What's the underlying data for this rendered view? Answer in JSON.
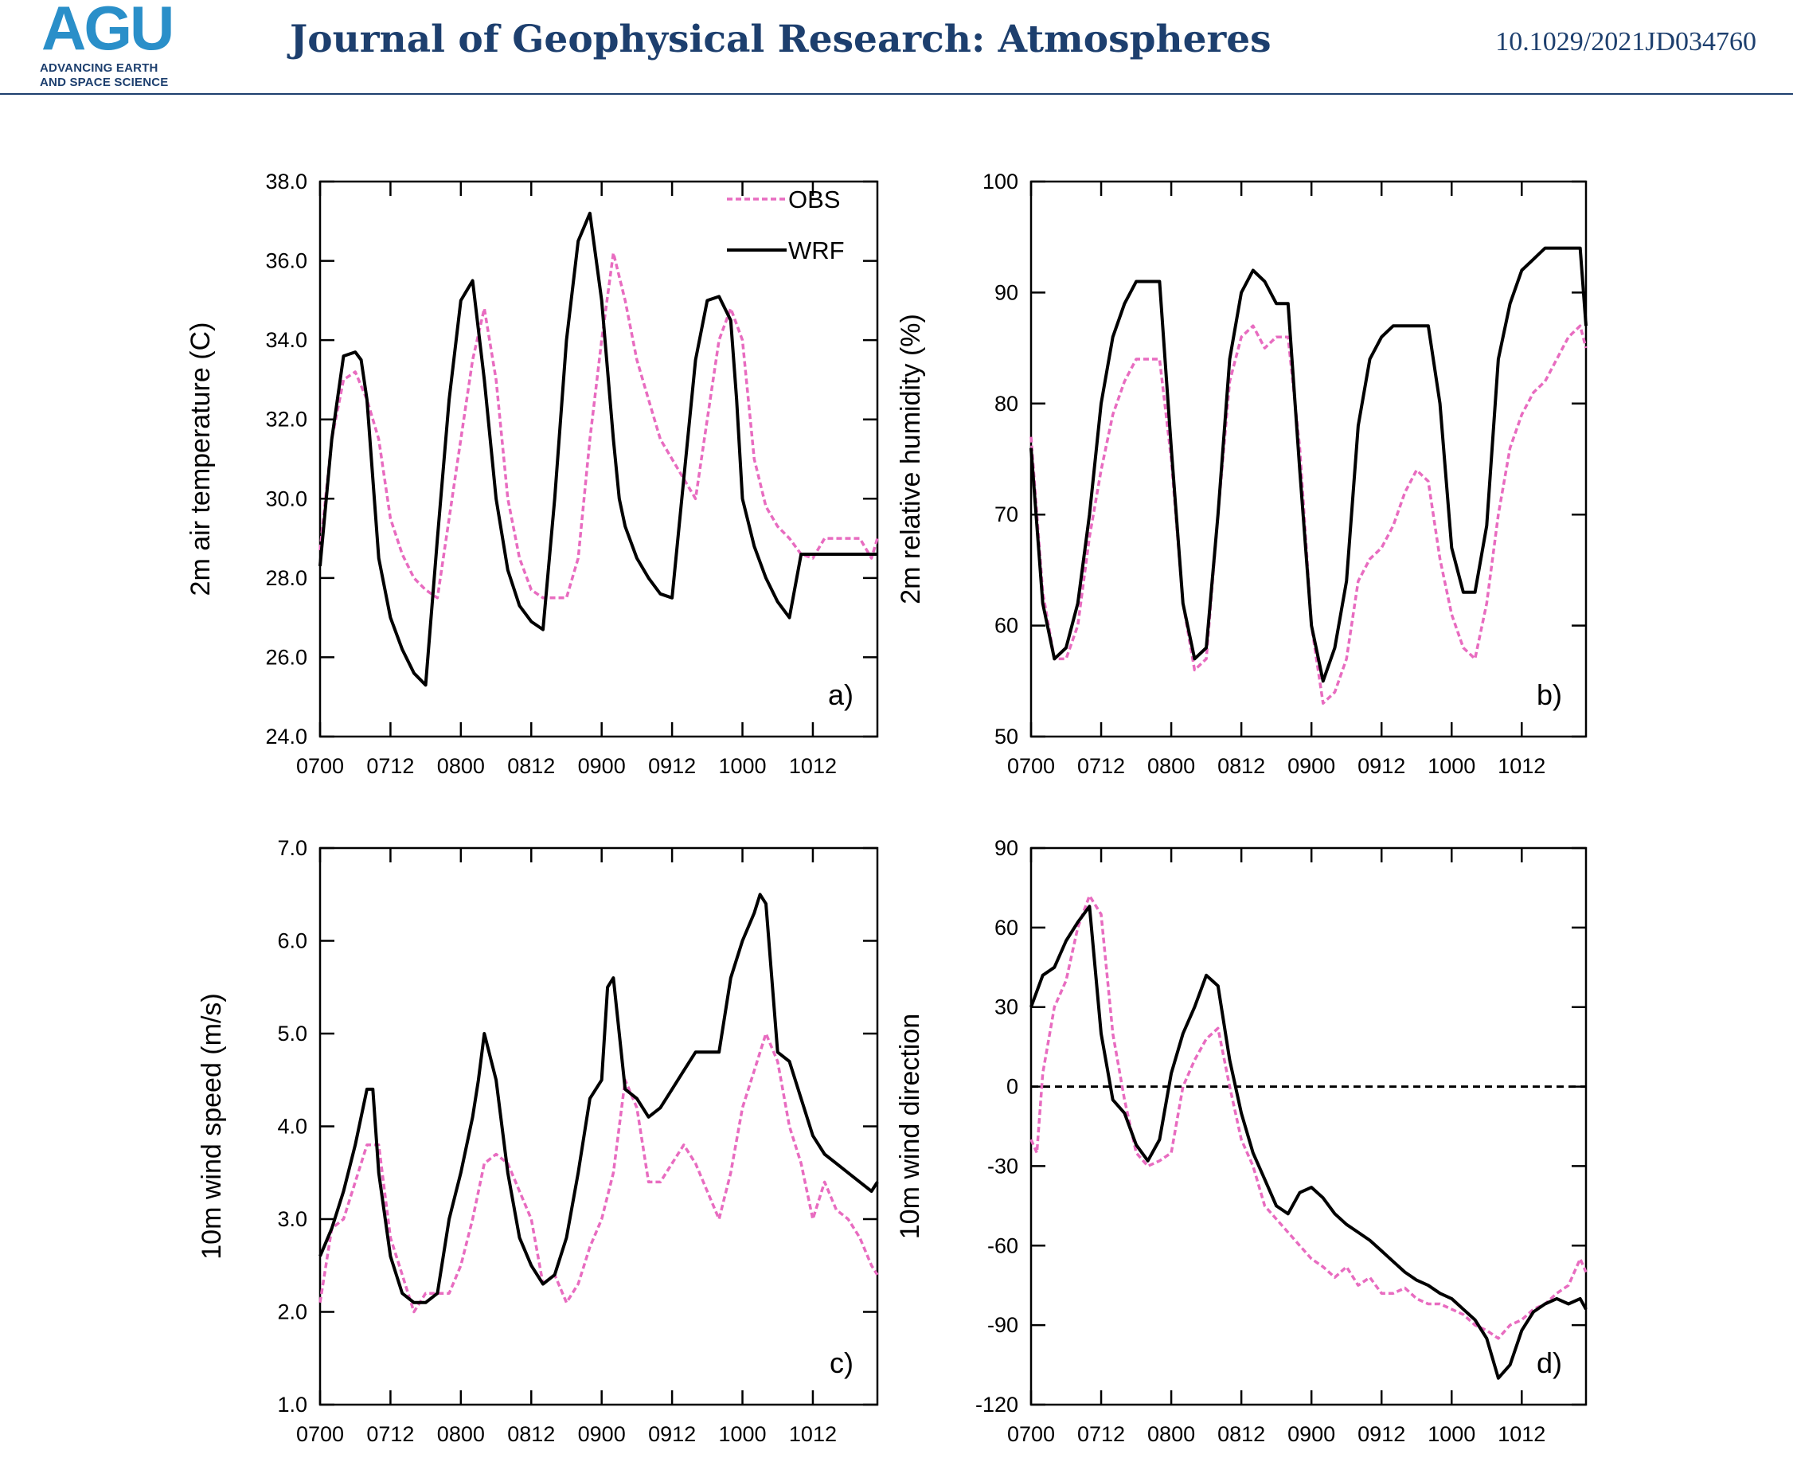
{
  "header": {
    "logo_text": "AGU",
    "logo_sub_1": "ADVANCING EARTH",
    "logo_sub_2": "AND SPACE SCIENCE",
    "journal_title": "Journal of Geophysical Research: Atmospheres",
    "doi": "10.1029/2021JD034760"
  },
  "colors": {
    "obs": "#e86cc0",
    "wrf": "#000000",
    "header_blue": "#1d3f6e",
    "logo_blue": "#2a8fc9"
  },
  "legend": {
    "obs": "OBS",
    "wrf": "WRF"
  },
  "chart_data": [
    {
      "type": "line",
      "panel": "a)",
      "ylabel": "2m air temperature (C)",
      "xlabel": "",
      "x_ticks": [
        0,
        12,
        24,
        36,
        48,
        60,
        72,
        84
      ],
      "x_tick_labels": [
        "0700",
        "0712",
        "0800",
        "0812",
        "0900",
        "0912",
        "1000",
        "1012"
      ],
      "xlim": [
        0,
        95
      ],
      "ylim": [
        24,
        38
      ],
      "y_ticks": [
        24,
        26,
        28,
        30,
        32,
        34,
        36,
        38
      ],
      "y_tick_labels": [
        "24.0",
        "26.0",
        "28.0",
        "30.0",
        "32.0",
        "34.0",
        "36.0",
        "38.0"
      ],
      "legend": "top-right",
      "series": [
        {
          "name": "OBS",
          "style": "dashed",
          "x": [
            0,
            2,
            4,
            6,
            8,
            10,
            12,
            14,
            16,
            18,
            20,
            22,
            24,
            26,
            28,
            30,
            32,
            34,
            36,
            38,
            40,
            42,
            44,
            46,
            48,
            50,
            52,
            54,
            56,
            58,
            60,
            62,
            64,
            66,
            68,
            70,
            72,
            74,
            76,
            78,
            80,
            82,
            84,
            86,
            88,
            90,
            92,
            94,
            95
          ],
          "y": [
            28.7,
            31.5,
            33.0,
            33.2,
            32.5,
            31.5,
            29.5,
            28.6,
            28.0,
            27.7,
            27.5,
            29.5,
            31.5,
            33.5,
            34.8,
            33.0,
            30.0,
            28.5,
            27.7,
            27.5,
            27.5,
            27.5,
            28.5,
            31.5,
            34.0,
            36.2,
            35.0,
            33.5,
            32.5,
            31.5,
            31.0,
            30.5,
            30.0,
            32.0,
            34.0,
            34.8,
            34.0,
            31.0,
            29.8,
            29.3,
            29.0,
            28.6,
            28.5,
            29.0,
            29.0,
            29.0,
            29.0,
            28.5,
            29.0
          ]
        },
        {
          "name": "WRF",
          "style": "solid",
          "x": [
            0,
            2,
            4,
            6,
            7,
            8,
            10,
            12,
            14,
            16,
            18,
            20,
            22,
            24,
            26,
            28,
            30,
            32,
            34,
            36,
            38,
            40,
            42,
            44,
            46,
            48,
            50,
            51,
            52,
            54,
            56,
            58,
            60,
            62,
            64,
            66,
            68,
            70,
            71,
            72,
            74,
            76,
            78,
            80,
            82,
            84,
            86,
            88,
            90,
            92,
            94,
            95
          ],
          "y": [
            28.3,
            31.5,
            33.6,
            33.7,
            33.5,
            32.5,
            28.5,
            27.0,
            26.2,
            25.6,
            25.3,
            29.0,
            32.5,
            35.0,
            35.5,
            33.0,
            30.0,
            28.2,
            27.3,
            26.9,
            26.7,
            30.0,
            34.0,
            36.5,
            37.2,
            35.0,
            31.5,
            30.0,
            29.3,
            28.5,
            28.0,
            27.6,
            27.5,
            30.5,
            33.5,
            35.0,
            35.1,
            34.5,
            32.5,
            30.0,
            28.8,
            28.0,
            27.4,
            27.0,
            28.6,
            28.6,
            28.6,
            28.6,
            28.6,
            28.6,
            28.6,
            28.6
          ]
        }
      ]
    },
    {
      "type": "line",
      "panel": "b)",
      "ylabel": "2m relative humidity (%)",
      "xlabel": "",
      "x_ticks": [
        0,
        12,
        24,
        36,
        48,
        60,
        72,
        84
      ],
      "x_tick_labels": [
        "0700",
        "0712",
        "0800",
        "0812",
        "0900",
        "0912",
        "1000",
        "1012"
      ],
      "xlim": [
        0,
        95
      ],
      "ylim": [
        50,
        100
      ],
      "y_ticks": [
        50,
        60,
        70,
        80,
        90,
        100
      ],
      "y_tick_labels": [
        "50",
        "60",
        "70",
        "80",
        "90",
        "100"
      ],
      "legend": "none",
      "series": [
        {
          "name": "OBS",
          "style": "dashed",
          "x": [
            0,
            2,
            4,
            6,
            8,
            10,
            12,
            14,
            16,
            18,
            20,
            22,
            24,
            26,
            28,
            30,
            32,
            34,
            36,
            38,
            40,
            42,
            44,
            46,
            48,
            50,
            52,
            54,
            56,
            58,
            60,
            62,
            64,
            66,
            68,
            70,
            72,
            74,
            76,
            78,
            80,
            82,
            84,
            86,
            88,
            90,
            92,
            94,
            95
          ],
          "y": [
            77,
            63,
            57,
            57,
            60,
            68,
            74,
            79,
            82,
            84,
            84,
            84,
            75,
            62,
            56,
            57,
            70,
            82,
            86,
            87,
            85,
            86,
            86,
            76,
            60,
            53,
            54,
            57,
            64,
            66,
            67,
            69,
            72,
            74,
            73,
            66,
            61,
            58,
            57,
            62,
            70,
            76,
            79,
            81,
            82,
            84,
            86,
            87,
            85
          ]
        },
        {
          "name": "WRF",
          "style": "solid",
          "x": [
            0,
            2,
            4,
            6,
            8,
            10,
            12,
            14,
            16,
            18,
            20,
            22,
            24,
            26,
            28,
            30,
            32,
            34,
            36,
            38,
            40,
            42,
            44,
            46,
            48,
            50,
            52,
            54,
            56,
            58,
            60,
            62,
            64,
            66,
            68,
            70,
            72,
            74,
            76,
            78,
            80,
            82,
            84,
            86,
            88,
            90,
            92,
            94,
            95
          ],
          "y": [
            76,
            62,
            57,
            58,
            62,
            70,
            80,
            86,
            89,
            91,
            91,
            91,
            76,
            62,
            57,
            58,
            70,
            84,
            90,
            92,
            91,
            89,
            89,
            74,
            60,
            55,
            58,
            64,
            78,
            84,
            86,
            87,
            87,
            87,
            87,
            80,
            67,
            63,
            63,
            69,
            84,
            89,
            92,
            93,
            94,
            94,
            94,
            94,
            87
          ]
        }
      ]
    },
    {
      "type": "line",
      "panel": "c)",
      "ylabel": "10m wind speed (m/s)",
      "xlabel": "",
      "x_ticks": [
        0,
        12,
        24,
        36,
        48,
        60,
        72,
        84
      ],
      "x_tick_labels": [
        "0700",
        "0712",
        "0800",
        "0812",
        "0900",
        "0912",
        "1000",
        "1012"
      ],
      "xlim": [
        0,
        95
      ],
      "ylim": [
        1,
        7
      ],
      "y_ticks": [
        1,
        2,
        3,
        4,
        5,
        6,
        7
      ],
      "y_tick_labels": [
        "1.0",
        "2.0",
        "3.0",
        "4.0",
        "5.0",
        "6.0",
        "7.0"
      ],
      "legend": "none",
      "series": [
        {
          "name": "OBS",
          "style": "dashed",
          "x": [
            0,
            2,
            4,
            6,
            8,
            10,
            12,
            14,
            16,
            18,
            20,
            22,
            24,
            26,
            28,
            30,
            32,
            34,
            36,
            38,
            40,
            42,
            44,
            46,
            48,
            50,
            52,
            54,
            56,
            58,
            60,
            62,
            64,
            66,
            68,
            70,
            72,
            74,
            76,
            78,
            80,
            82,
            84,
            86,
            88,
            90,
            92,
            94,
            95
          ],
          "y": [
            2.1,
            2.9,
            3.0,
            3.4,
            3.8,
            3.8,
            2.8,
            2.4,
            2.0,
            2.2,
            2.2,
            2.2,
            2.5,
            3.0,
            3.6,
            3.7,
            3.6,
            3.3,
            3.0,
            2.3,
            2.4,
            2.1,
            2.3,
            2.7,
            3.0,
            3.5,
            4.5,
            4.2,
            3.4,
            3.4,
            3.6,
            3.8,
            3.6,
            3.3,
            3.0,
            3.5,
            4.2,
            4.6,
            5.0,
            4.7,
            4.0,
            3.6,
            3.0,
            3.4,
            3.1,
            3.0,
            2.8,
            2.5,
            2.4
          ]
        },
        {
          "name": "WRF",
          "style": "solid",
          "x": [
            0,
            2,
            4,
            6,
            8,
            9,
            10,
            12,
            14,
            16,
            18,
            20,
            22,
            24,
            26,
            27,
            28,
            30,
            32,
            34,
            36,
            38,
            40,
            42,
            44,
            46,
            48,
            49,
            50,
            52,
            54,
            56,
            58,
            60,
            62,
            64,
            66,
            68,
            70,
            72,
            74,
            75,
            76,
            78,
            80,
            82,
            84,
            86,
            88,
            90,
            92,
            94,
            95
          ],
          "y": [
            2.6,
            2.9,
            3.3,
            3.8,
            4.4,
            4.4,
            3.5,
            2.6,
            2.2,
            2.1,
            2.1,
            2.2,
            3.0,
            3.5,
            4.1,
            4.5,
            5.0,
            4.5,
            3.5,
            2.8,
            2.5,
            2.3,
            2.4,
            2.8,
            3.5,
            4.3,
            4.5,
            5.5,
            5.6,
            4.4,
            4.3,
            4.1,
            4.2,
            4.4,
            4.6,
            4.8,
            4.8,
            4.8,
            5.6,
            6.0,
            6.3,
            6.5,
            6.4,
            4.8,
            4.7,
            4.3,
            3.9,
            3.7,
            3.6,
            3.5,
            3.4,
            3.3,
            3.4
          ]
        }
      ]
    },
    {
      "type": "line",
      "panel": "d)",
      "ylabel": "10m wind direction",
      "xlabel": "",
      "x_ticks": [
        0,
        12,
        24,
        36,
        48,
        60,
        72,
        84
      ],
      "x_tick_labels": [
        "0700",
        "0712",
        "0800",
        "0812",
        "0900",
        "0912",
        "1000",
        "1012"
      ],
      "xlim": [
        0,
        95
      ],
      "ylim": [
        -120,
        90
      ],
      "y_ticks": [
        -120,
        -90,
        -60,
        -30,
        0,
        30,
        60,
        90
      ],
      "y_tick_labels": [
        "-120",
        "-90",
        "-60",
        "-30",
        "0",
        "30",
        "60",
        "90"
      ],
      "reference_line": 0,
      "legend": "none",
      "series": [
        {
          "name": "OBS",
          "style": "dashed",
          "x": [
            0,
            1,
            2,
            4,
            6,
            8,
            10,
            12,
            14,
            16,
            18,
            20,
            22,
            24,
            26,
            28,
            30,
            32,
            34,
            36,
            38,
            40,
            42,
            44,
            46,
            48,
            50,
            52,
            54,
            56,
            58,
            60,
            62,
            64,
            66,
            68,
            70,
            72,
            74,
            76,
            78,
            80,
            82,
            84,
            86,
            88,
            90,
            92,
            94,
            95
          ],
          "y": [
            -20,
            -25,
            5,
            30,
            40,
            60,
            72,
            65,
            20,
            -5,
            -25,
            -30,
            -28,
            -25,
            0,
            10,
            18,
            22,
            0,
            -20,
            -30,
            -45,
            -50,
            -55,
            -60,
            -65,
            -68,
            -72,
            -68,
            -75,
            -72,
            -78,
            -78,
            -76,
            -80,
            -82,
            -82,
            -84,
            -86,
            -90,
            -92,
            -95,
            -90,
            -88,
            -84,
            -82,
            -78,
            -75,
            -65,
            -70
          ]
        },
        {
          "name": "WRF",
          "style": "solid",
          "x": [
            0,
            2,
            4,
            6,
            8,
            10,
            12,
            14,
            16,
            18,
            20,
            22,
            24,
            26,
            28,
            30,
            32,
            34,
            36,
            38,
            40,
            42,
            44,
            46,
            48,
            50,
            52,
            54,
            56,
            58,
            60,
            62,
            64,
            66,
            68,
            70,
            72,
            74,
            76,
            78,
            80,
            82,
            84,
            86,
            88,
            90,
            92,
            94,
            95
          ],
          "y": [
            30,
            42,
            45,
            55,
            62,
            68,
            20,
            -5,
            -10,
            -22,
            -28,
            -20,
            5,
            20,
            30,
            42,
            38,
            10,
            -10,
            -25,
            -35,
            -45,
            -48,
            -40,
            -38,
            -42,
            -48,
            -52,
            -55,
            -58,
            -62,
            -66,
            -70,
            -73,
            -75,
            -78,
            -80,
            -84,
            -88,
            -95,
            -110,
            -105,
            -92,
            -85,
            -82,
            -80,
            -82,
            -80,
            -84
          ]
        }
      ]
    }
  ]
}
